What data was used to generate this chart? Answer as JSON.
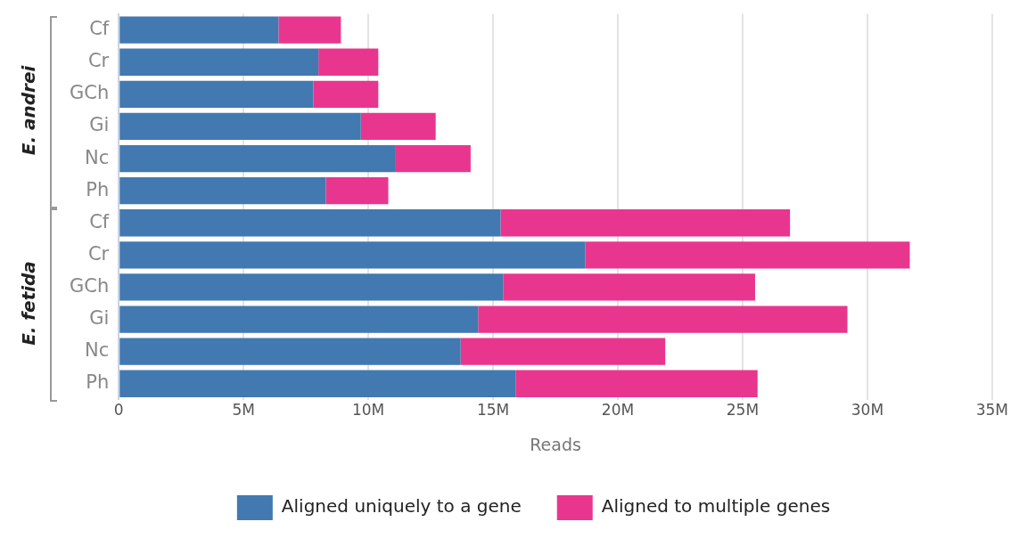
{
  "chart_data": {
    "type": "bar",
    "orientation": "horizontal",
    "stacked": true,
    "categories": [
      "Cf",
      "Cr",
      "GCh",
      "Gi",
      "Nc",
      "Ph",
      "Cf",
      "Cr",
      "GCh",
      "Gi",
      "Nc",
      "Ph"
    ],
    "series": [
      {
        "name": "Aligned uniquely to a gene",
        "color": "#4279b0",
        "values": [
          6400000,
          8000000,
          7800000,
          9700000,
          11100000,
          8300000,
          15300000,
          18700000,
          15400000,
          14400000,
          13700000,
          15900000
        ]
      },
      {
        "name": "Aligned to multiple genes",
        "color": "#e8368f",
        "values": [
          2500000,
          2400000,
          2600000,
          3000000,
          3000000,
          2500000,
          11600000,
          13000000,
          10100000,
          14800000,
          8200000,
          9700000
        ]
      }
    ],
    "xlabel": "Reads",
    "xlim": [
      0,
      35000000
    ],
    "xticks": [
      0,
      {
        "value": 5000000,
        "label": "5M"
      },
      {
        "value": 10000000,
        "label": "10M"
      },
      {
        "value": 15000000,
        "label": "15M"
      },
      {
        "value": 20000000,
        "label": "20M"
      },
      {
        "value": 25000000,
        "label": "25M"
      },
      {
        "value": 30000000,
        "label": "30M"
      },
      {
        "value": 35000000,
        "label": "35M"
      }
    ],
    "annotations": [
      "E. andrei",
      "E. fetida"
    ],
    "grid": "x",
    "legend": "bottom"
  }
}
